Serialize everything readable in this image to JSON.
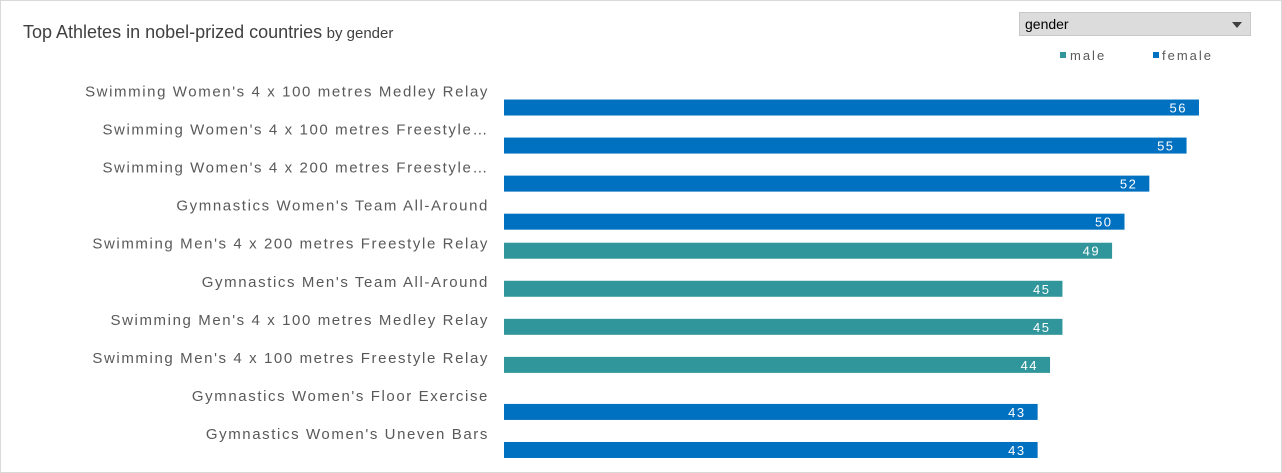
{
  "title": "Top Athletes in nobel-prized countries",
  "subtitle": "by gender",
  "filter": {
    "value": "gender",
    "arrow_icon": "triangle-down-icon"
  },
  "legend": [
    {
      "name": "male",
      "color": "#31969b"
    },
    {
      "name": "female",
      "color": "#0070c0"
    }
  ],
  "chart_data": {
    "type": "bar",
    "orientation": "horizontal",
    "title": "Top Athletes in nobel-prized countries",
    "subtitle": "by gender",
    "legend_position": "top-right",
    "grid": false,
    "xlim": [
      0,
      60
    ],
    "categories": [
      "Swimming Women's 4 x 100 metres Medley Relay",
      "Swimming Women's 4 x 100 metres Freestyle…",
      "Swimming Women's 4 x 200 metres Freestyle…",
      "Gymnastics Women's Team All-Around",
      "Swimming Men's 4 x 200 metres Freestyle Relay",
      "Gymnastics Men's Team All-Around",
      "Swimming Men's 4 x 100 metres Medley Relay",
      "Swimming Men's 4 x 100 metres Freestyle Relay",
      "Gymnastics Women's Floor Exercise",
      "Gymnastics Women's Uneven Bars"
    ],
    "series": [
      {
        "name": "male",
        "color": "#31969b",
        "values": [
          null,
          null,
          null,
          null,
          49,
          45,
          45,
          44,
          null,
          null
        ]
      },
      {
        "name": "female",
        "color": "#0070c0",
        "values": [
          56,
          55,
          52,
          50,
          null,
          null,
          null,
          null,
          43,
          43
        ]
      }
    ]
  }
}
